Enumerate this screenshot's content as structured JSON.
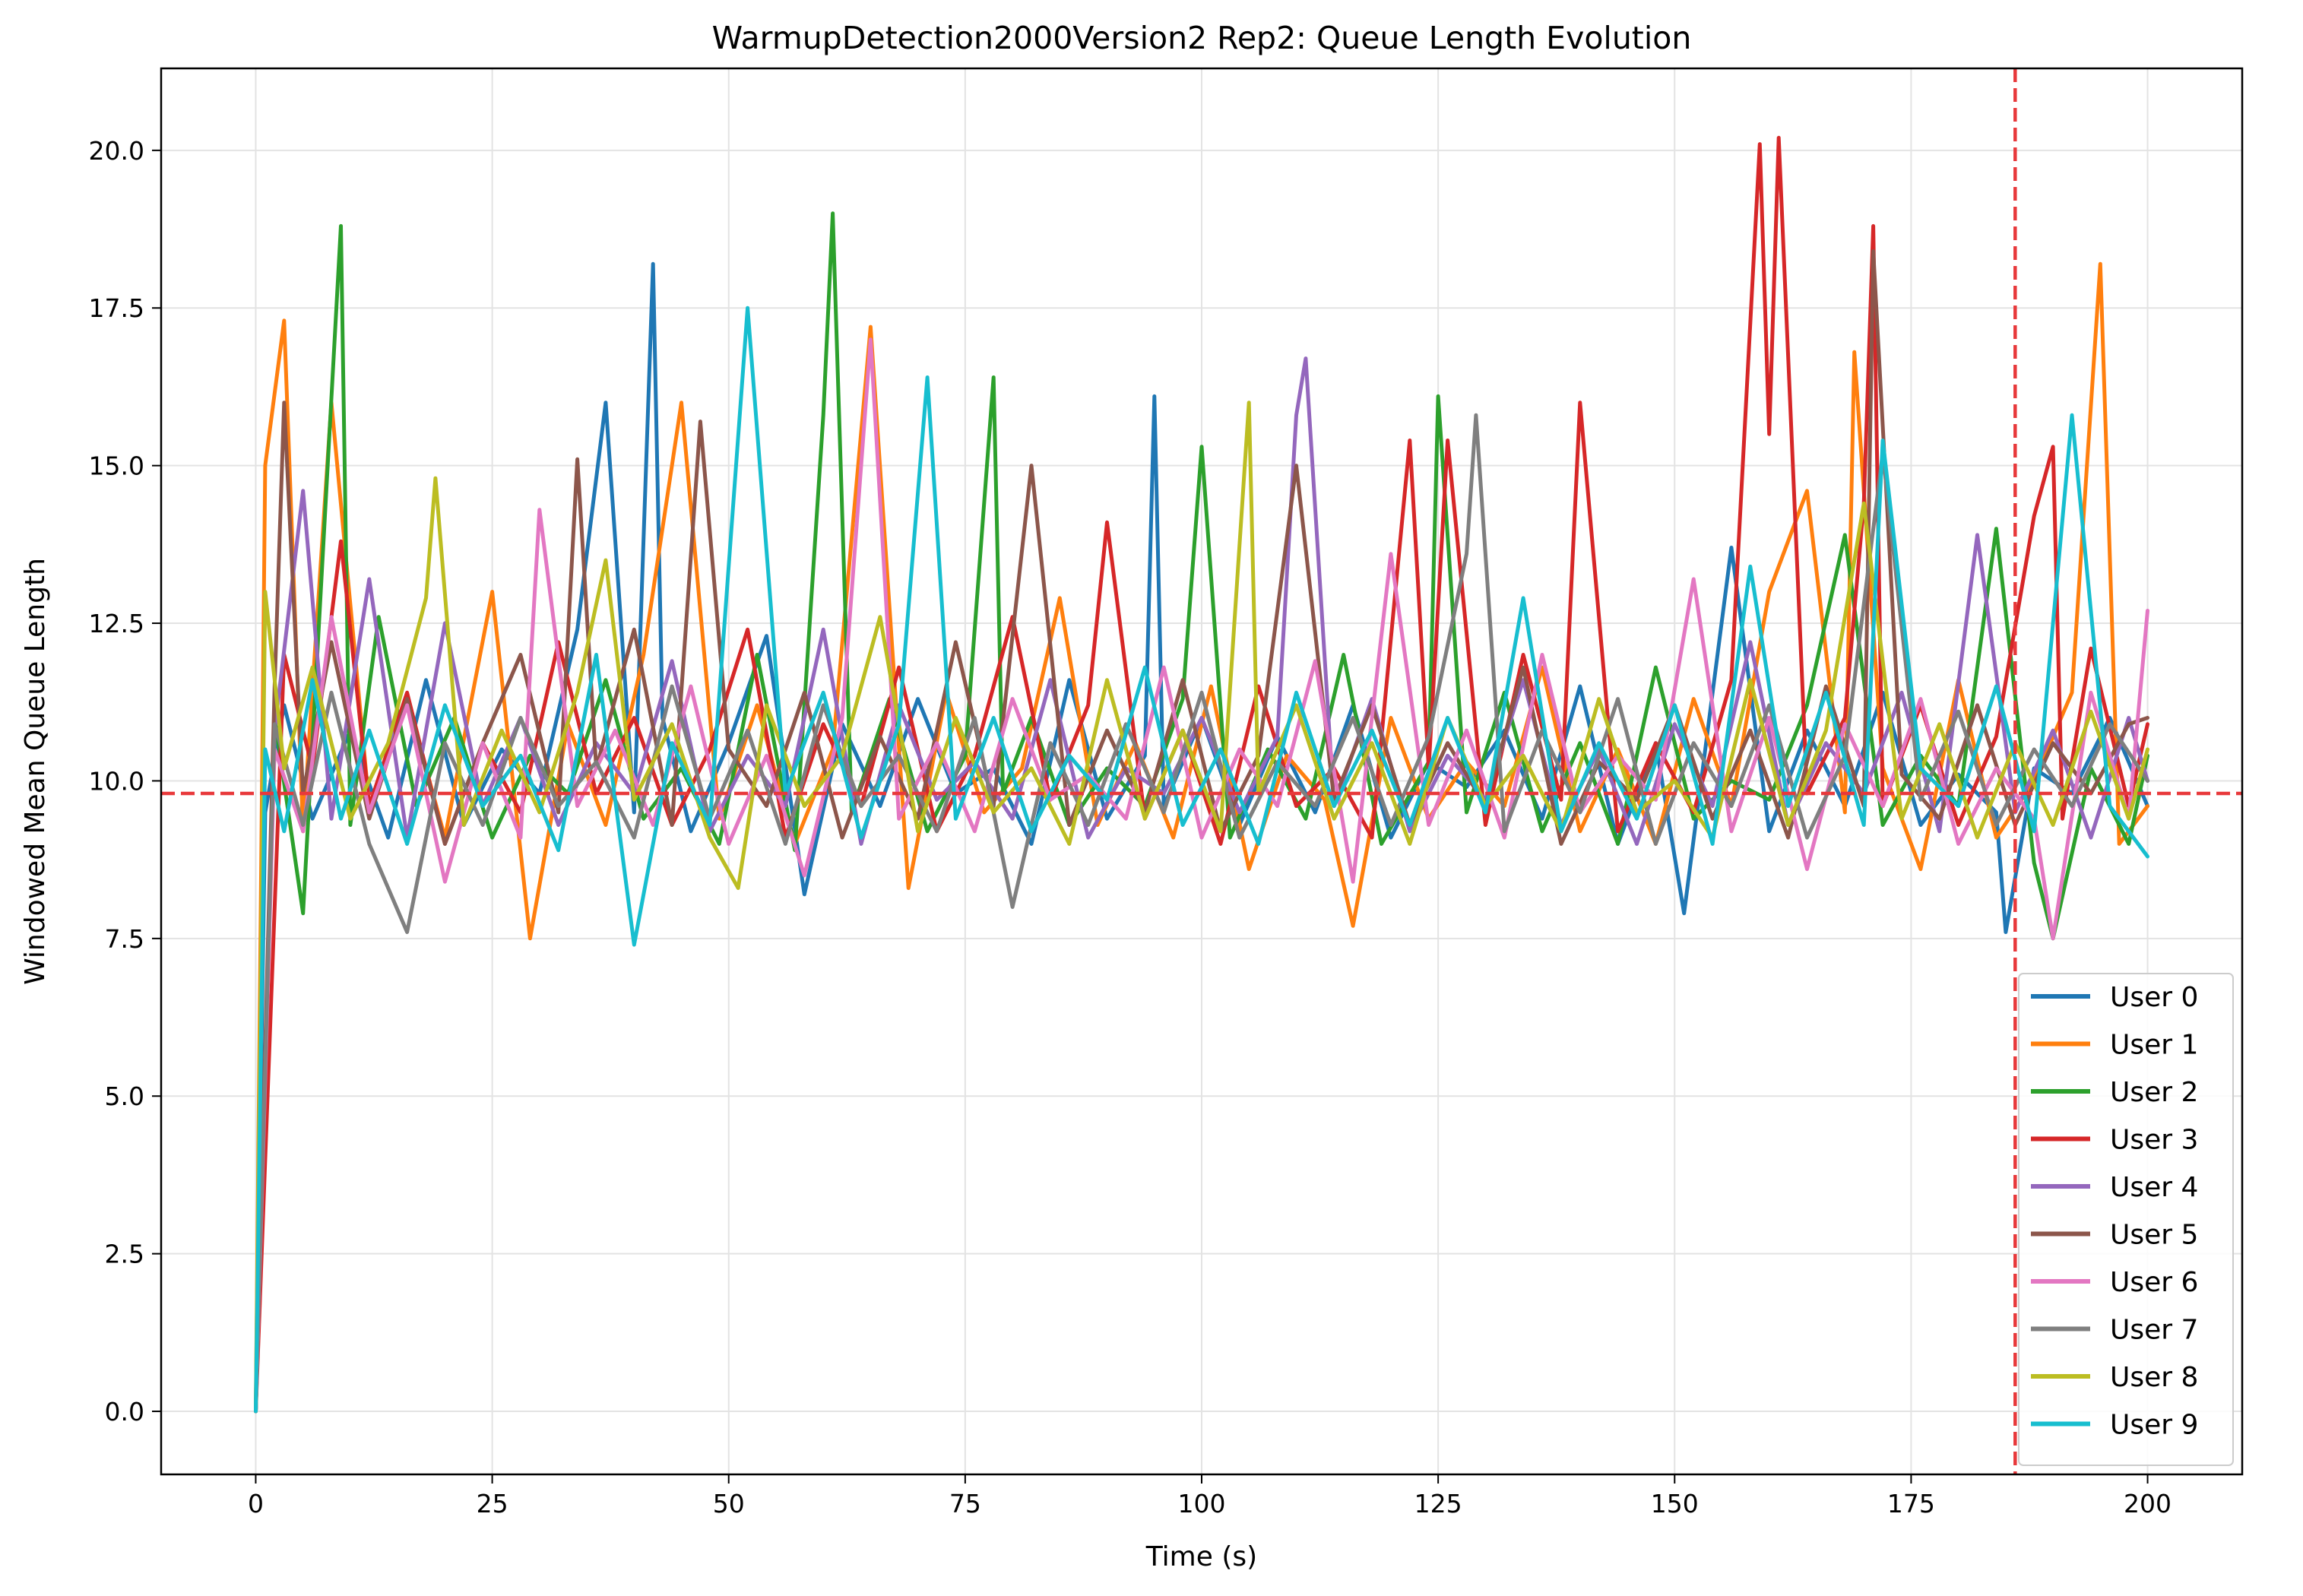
{
  "chart_data": {
    "type": "line",
    "title": "WarmupDetection2000Version2 Rep2: Queue Length Evolution",
    "xlabel": "Time (s)",
    "ylabel": "Windowed Mean Queue Length",
    "xlim": [
      -10,
      210
    ],
    "ylim": [
      -1.0,
      21.3
    ],
    "xticks": [
      0,
      25,
      50,
      75,
      100,
      125,
      150,
      175,
      200
    ],
    "xtick_labels": [
      "0",
      "25",
      "50",
      "75",
      "100",
      "125",
      "150",
      "175",
      "200"
    ],
    "yticks": [
      0.0,
      2.5,
      5.0,
      7.5,
      10.0,
      12.5,
      15.0,
      17.5,
      20.0
    ],
    "ytick_labels": [
      "0.0",
      "2.5",
      "5.0",
      "7.5",
      "10.0",
      "12.5",
      "15.0",
      "17.5",
      "20.0"
    ],
    "grid": true,
    "legend_position": "lower-right",
    "reference_lines": [
      {
        "orientation": "horizontal",
        "value": 9.8,
        "style": "dashed",
        "color": "#e8393b"
      },
      {
        "orientation": "vertical",
        "value": 186,
        "style": "dashed",
        "color": "#e8393b"
      }
    ],
    "series": [
      {
        "name": "User 0",
        "color": "#1f77b4",
        "x": [
          0,
          1,
          3,
          6,
          10,
          14,
          18,
          22,
          26,
          30,
          34,
          37,
          40,
          42,
          43,
          46,
          50,
          54,
          58,
          62,
          66,
          70,
          74,
          78,
          82,
          86,
          90,
          94,
          95,
          96,
          100,
          104,
          108,
          112,
          116,
          120,
          124,
          128,
          132,
          136,
          140,
          144,
          148,
          151,
          156,
          160,
          164,
          168,
          172,
          176,
          180,
          184,
          185,
          188,
          192,
          196,
          200
        ],
        "y": [
          0.0,
          9.5,
          11.2,
          9.4,
          10.8,
          9.1,
          11.6,
          9.3,
          10.5,
          9.8,
          12.4,
          16.0,
          9.5,
          18.2,
          11.0,
          9.2,
          10.6,
          12.3,
          8.2,
          10.9,
          9.6,
          11.3,
          9.8,
          10.2,
          9.0,
          11.6,
          9.4,
          10.4,
          16.1,
          9.6,
          11.0,
          9.3,
          10.7,
          9.5,
          11.2,
          9.1,
          10.3,
          9.9,
          10.8,
          9.4,
          11.5,
          9.0,
          10.6,
          7.9,
          13.7,
          9.2,
          10.8,
          9.6,
          11.4,
          9.3,
          10.1,
          9.5,
          7.6,
          10.2,
          9.8,
          11.0,
          9.6
        ]
      },
      {
        "name": "User 1",
        "color": "#ff7f0e",
        "x": [
          0,
          1,
          3,
          5,
          8,
          12,
          16,
          20,
          25,
          29,
          33,
          37,
          41,
          45,
          49,
          53,
          57,
          61,
          65,
          69,
          73,
          77,
          81,
          85,
          89,
          93,
          97,
          101,
          105,
          109,
          113,
          116,
          120,
          124,
          128,
          132,
          136,
          140,
          144,
          148,
          152,
          156,
          160,
          164,
          168,
          169,
          172,
          176,
          180,
          184,
          188,
          192,
          195,
          197,
          200
        ],
        "y": [
          0.0,
          15.0,
          17.3,
          9.2,
          16.0,
          9.6,
          11.3,
          9.1,
          13.0,
          7.5,
          10.9,
          9.3,
          12.0,
          16.0,
          9.4,
          11.2,
          9.0,
          10.5,
          17.2,
          8.3,
          11.4,
          9.5,
          10.2,
          12.9,
          9.3,
          10.6,
          9.1,
          11.5,
          8.6,
          10.4,
          9.7,
          7.7,
          11.0,
          9.4,
          10.3,
          9.6,
          11.8,
          9.2,
          10.5,
          9.0,
          11.3,
          9.6,
          13.0,
          14.6,
          9.5,
          16.8,
          10.2,
          8.6,
          11.6,
          9.1,
          10.0,
          11.4,
          18.2,
          9.0,
          9.6
        ]
      },
      {
        "name": "User 2",
        "color": "#2ca02c",
        "x": [
          0,
          2,
          5,
          9,
          10,
          13,
          17,
          21,
          25,
          29,
          33,
          37,
          41,
          45,
          49,
          53,
          57,
          60,
          61,
          63,
          67,
          71,
          75,
          78,
          79,
          82,
          86,
          90,
          94,
          98,
          100,
          103,
          107,
          111,
          115,
          119,
          124,
          125,
          128,
          132,
          136,
          140,
          144,
          148,
          152,
          156,
          160,
          164,
          168,
          172,
          176,
          180,
          184,
          188,
          190,
          194,
          198,
          200
        ],
        "y": [
          0.0,
          11.0,
          7.9,
          18.8,
          9.3,
          12.6,
          9.6,
          11.0,
          9.1,
          10.4,
          9.8,
          11.6,
          9.4,
          10.2,
          9.0,
          12.0,
          8.9,
          15.8,
          19.0,
          9.5,
          11.3,
          9.2,
          10.4,
          16.4,
          9.8,
          11.0,
          9.3,
          10.2,
          9.6,
          11.3,
          15.3,
          9.1,
          10.5,
          9.4,
          12.0,
          9.0,
          10.3,
          16.1,
          9.5,
          11.4,
          9.2,
          10.6,
          9.0,
          11.8,
          9.4,
          10.0,
          9.7,
          11.2,
          13.9,
          9.3,
          10.4,
          9.6,
          14.0,
          8.7,
          7.5,
          10.2,
          9.0,
          10.4
        ]
      },
      {
        "name": "User 3",
        "color": "#d62728",
        "x": [
          0,
          3,
          6,
          9,
          12,
          16,
          20,
          24,
          28,
          32,
          36,
          40,
          44,
          48,
          52,
          56,
          60,
          64,
          68,
          72,
          76,
          80,
          84,
          88,
          90,
          94,
          98,
          102,
          106,
          110,
          114,
          118,
          122,
          124,
          126,
          130,
          134,
          138,
          140,
          144,
          148,
          152,
          156,
          159,
          160,
          161,
          164,
          168,
          170,
          171,
          172,
          176,
          180,
          184,
          188,
          190,
          191,
          194,
          198,
          200
        ],
        "y": [
          0.0,
          12.0,
          10.2,
          13.8,
          9.6,
          11.4,
          9.0,
          10.6,
          9.5,
          12.2,
          9.8,
          11.0,
          9.3,
          10.5,
          12.4,
          9.1,
          10.9,
          9.6,
          11.8,
          9.2,
          10.4,
          12.6,
          9.7,
          11.2,
          14.1,
          9.4,
          10.8,
          9.0,
          11.5,
          9.6,
          10.2,
          9.1,
          15.4,
          10.2,
          15.4,
          9.3,
          12.0,
          9.7,
          16.0,
          9.2,
          10.6,
          9.5,
          11.6,
          20.1,
          15.5,
          20.2,
          9.8,
          11.0,
          14.4,
          18.8,
          9.6,
          11.2,
          9.3,
          10.7,
          14.2,
          15.3,
          9.4,
          12.1,
          9.6,
          10.9
        ]
      },
      {
        "name": "User 4",
        "color": "#9467bd",
        "x": [
          0,
          2,
          5,
          8,
          12,
          16,
          20,
          24,
          28,
          32,
          36,
          40,
          44,
          48,
          52,
          56,
          60,
          64,
          68,
          72,
          76,
          80,
          84,
          88,
          92,
          96,
          100,
          104,
          108,
          110,
          111,
          114,
          118,
          122,
          126,
          130,
          134,
          138,
          142,
          146,
          150,
          154,
          158,
          162,
          166,
          170,
          174,
          178,
          182,
          186,
          190,
          194,
          198,
          200
        ],
        "y": [
          0.0,
          10.8,
          14.6,
          9.4,
          13.2,
          9.1,
          12.5,
          9.6,
          11.0,
          9.3,
          10.6,
          9.8,
          11.9,
          9.2,
          10.4,
          9.6,
          12.4,
          9.0,
          11.2,
          9.7,
          10.3,
          9.4,
          11.6,
          9.1,
          10.2,
          9.8,
          11.0,
          9.5,
          10.7,
          15.8,
          16.7,
          9.6,
          11.3,
          9.2,
          10.4,
          9.7,
          11.6,
          9.3,
          10.5,
          9.0,
          10.9,
          9.6,
          12.2,
          9.3,
          10.6,
          9.8,
          11.4,
          9.2,
          13.9,
          9.5,
          10.8,
          9.1,
          11.0,
          10.0
        ]
      },
      {
        "name": "User 5",
        "color": "#8c564b",
        "x": [
          0,
          2,
          3,
          5,
          8,
          12,
          16,
          20,
          24,
          28,
          32,
          34,
          36,
          40,
          44,
          47,
          50,
          54,
          58,
          62,
          66,
          70,
          74,
          78,
          82,
          86,
          90,
          94,
          98,
          102,
          106,
          110,
          114,
          118,
          122,
          126,
          130,
          134,
          138,
          142,
          146,
          150,
          154,
          158,
          162,
          166,
          170,
          171,
          174,
          178,
          182,
          186,
          190,
          194,
          198,
          200
        ],
        "y": [
          0.0,
          11.5,
          16.0,
          9.8,
          12.2,
          9.4,
          11.3,
          9.0,
          10.6,
          12.0,
          9.5,
          15.1,
          10.2,
          12.4,
          9.3,
          15.7,
          10.5,
          9.6,
          11.4,
          9.1,
          10.7,
          9.4,
          12.2,
          9.6,
          15.0,
          9.3,
          10.8,
          9.5,
          11.6,
          9.2,
          10.4,
          15.0,
          9.7,
          11.2,
          9.3,
          10.6,
          9.6,
          11.8,
          9.0,
          10.3,
          9.7,
          11.2,
          9.4,
          10.8,
          9.1,
          11.5,
          9.6,
          18.4,
          10.1,
          9.4,
          11.2,
          9.3,
          10.6,
          9.8,
          10.9,
          11.0
        ]
      },
      {
        "name": "User 6",
        "color": "#e377c2",
        "x": [
          0,
          2,
          5,
          8,
          12,
          16,
          20,
          24,
          28,
          30,
          34,
          38,
          42,
          46,
          50,
          54,
          58,
          62,
          65,
          68,
          72,
          76,
          80,
          84,
          88,
          92,
          96,
          100,
          104,
          108,
          112,
          116,
          120,
          124,
          128,
          132,
          136,
          140,
          144,
          148,
          152,
          156,
          160,
          164,
          168,
          172,
          176,
          180,
          184,
          188,
          190,
          194,
          198,
          200
        ],
        "y": [
          0.0,
          10.5,
          9.2,
          12.6,
          9.5,
          11.2,
          8.4,
          10.6,
          9.1,
          14.3,
          9.6,
          10.8,
          9.3,
          11.5,
          9.0,
          10.4,
          8.5,
          11.0,
          17.0,
          9.4,
          10.6,
          9.2,
          11.3,
          9.7,
          10.1,
          9.4,
          11.8,
          9.1,
          10.5,
          9.6,
          11.9,
          8.4,
          13.6,
          9.3,
          10.8,
          9.1,
          12.0,
          9.5,
          10.4,
          9.7,
          13.2,
          9.2,
          11.0,
          8.6,
          10.9,
          9.6,
          11.3,
          9.0,
          10.2,
          9.4,
          7.5,
          11.4,
          9.4,
          12.7
        ]
      },
      {
        "name": "User 7",
        "color": "#7f7f7f",
        "x": [
          0,
          2,
          5,
          8,
          12,
          16,
          20,
          24,
          28,
          32,
          36,
          40,
          44,
          48,
          52,
          56,
          60,
          64,
          68,
          72,
          76,
          80,
          84,
          88,
          92,
          96,
          100,
          104,
          108,
          112,
          116,
          120,
          124,
          128,
          129,
          132,
          136,
          140,
          144,
          148,
          152,
          156,
          160,
          164,
          168,
          172,
          176,
          180,
          184,
          188,
          192,
          196,
          200
        ],
        "y": [
          0.0,
          10.9,
          9.3,
          11.4,
          9.0,
          7.6,
          10.6,
          9.3,
          11.0,
          9.6,
          10.3,
          9.1,
          11.5,
          9.4,
          10.8,
          9.0,
          11.2,
          9.6,
          10.4,
          9.2,
          11.0,
          8.0,
          10.6,
          9.3,
          10.9,
          9.5,
          11.4,
          9.1,
          10.3,
          9.6,
          11.0,
          9.3,
          10.7,
          13.6,
          15.8,
          9.2,
          10.8,
          9.5,
          11.3,
          9.0,
          10.6,
          9.6,
          11.2,
          9.1,
          10.4,
          15.2,
          9.7,
          11.1,
          9.3,
          10.5,
          9.6,
          10.9,
          10.0
        ]
      },
      {
        "name": "User 8",
        "color": "#bcbd22",
        "x": [
          0,
          1,
          3,
          6,
          10,
          14,
          18,
          19,
          22,
          26,
          30,
          34,
          37,
          40,
          44,
          48,
          51,
          54,
          58,
          62,
          66,
          70,
          74,
          78,
          82,
          86,
          90,
          94,
          98,
          102,
          105,
          106,
          110,
          114,
          118,
          122,
          126,
          130,
          134,
          138,
          142,
          146,
          150,
          154,
          158,
          162,
          166,
          170,
          174,
          178,
          182,
          186,
          190,
          194,
          198,
          200
        ],
        "y": [
          0.0,
          13.0,
          10.2,
          11.8,
          9.4,
          10.6,
          12.9,
          14.8,
          9.3,
          10.8,
          9.5,
          11.4,
          13.5,
          9.7,
          10.9,
          9.1,
          8.3,
          11.2,
          9.6,
          10.4,
          12.6,
          9.2,
          11.0,
          9.5,
          10.2,
          9.0,
          11.6,
          9.4,
          10.8,
          9.2,
          16.0,
          9.8,
          11.2,
          9.4,
          10.6,
          9.0,
          11.0,
          9.6,
          10.4,
          9.2,
          11.3,
          9.5,
          10.0,
          9.1,
          11.6,
          9.3,
          10.8,
          14.4,
          9.4,
          10.9,
          9.1,
          10.6,
          9.3,
          11.1,
          9.4,
          10.5
        ]
      },
      {
        "name": "User 9",
        "color": "#17becf",
        "x": [
          0,
          1,
          3,
          6,
          9,
          12,
          16,
          20,
          24,
          28,
          32,
          36,
          40,
          44,
          48,
          52,
          56,
          60,
          64,
          68,
          71,
          74,
          78,
          82,
          86,
          90,
          94,
          98,
          102,
          106,
          110,
          114,
          118,
          122,
          126,
          130,
          134,
          138,
          142,
          146,
          150,
          154,
          158,
          162,
          166,
          170,
          172,
          176,
          180,
          184,
          188,
          192,
          196,
          200
        ],
        "y": [
          0.0,
          10.5,
          9.2,
          11.6,
          9.4,
          10.8,
          9.0,
          11.2,
          9.6,
          10.4,
          8.9,
          12.0,
          7.4,
          10.6,
          9.3,
          17.5,
          9.8,
          11.4,
          9.1,
          10.9,
          16.4,
          9.4,
          11.0,
          9.2,
          10.4,
          9.7,
          11.8,
          9.3,
          10.5,
          9.0,
          11.4,
          9.6,
          10.8,
          9.3,
          11.0,
          9.5,
          12.9,
          9.2,
          10.6,
          9.4,
          11.2,
          9.0,
          13.4,
          9.6,
          11.4,
          9.3,
          15.4,
          10.2,
          9.6,
          11.5,
          9.2,
          15.8,
          9.6,
          8.8
        ]
      }
    ]
  }
}
